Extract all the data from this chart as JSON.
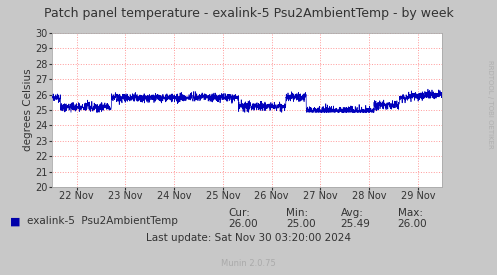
{
  "title": "Patch panel temperature - exalink-5 Psu2AmbientTemp - by week",
  "ylabel": "degrees Celsius",
  "line_color": "#0000bb",
  "fig_bg_color": "#c8c8c8",
  "plot_bg_color": "#ffffff",
  "grid_color": "#ff9999",
  "ylim": [
    20,
    30
  ],
  "yticks": [
    20,
    21,
    22,
    23,
    24,
    25,
    26,
    27,
    28,
    29,
    30
  ],
  "xlabel_dates": [
    "22 Nov",
    "23 Nov",
    "24 Nov",
    "25 Nov",
    "26 Nov",
    "27 Nov",
    "28 Nov",
    "29 Nov"
  ],
  "legend_label": "exalink-5  Psu2AmbientTemp",
  "legend_color": "#0000aa",
  "stats_cur": "26.00",
  "stats_min": "25.00",
  "stats_avg": "25.49",
  "stats_max": "26.00",
  "last_update": "Last update: Sat Nov 30 03:20:00 2024",
  "munin_version": "Munin 2.0.75",
  "watermark": "RRDTOOL / TOBI OETIKER",
  "title_fontsize": 9,
  "axis_fontsize": 7,
  "legend_fontsize": 7.5,
  "stats_fontsize": 7.5,
  "watermark_fontsize": 5
}
